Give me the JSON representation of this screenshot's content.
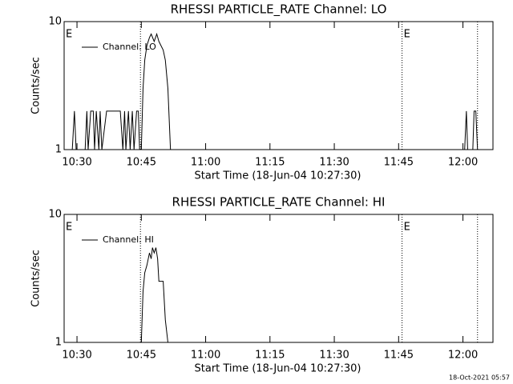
{
  "chart_data": [
    {
      "type": "line",
      "title": "RHESSI PARTICLE_RATE Channel: LO",
      "xlabel": "Start Time (18-Jun-04 10:27:30)",
      "ylabel": "Counts/sec",
      "x": [
        628.9,
        629.4,
        629.8,
        631.9,
        632.3,
        632.6,
        633.2,
        633.8,
        634.1,
        634.5,
        635.1,
        635.4,
        635.8,
        636.9,
        640.1,
        640.7,
        641.1,
        641.4,
        642.0,
        642.4,
        642.9,
        643.3,
        643.9,
        644.3,
        644.6,
        645.0,
        645.4,
        645.8,
        646.3,
        646.9,
        647.3,
        648.0,
        648.6,
        649.1,
        650.1,
        650.6,
        651.2,
        651.8,
        720.4,
        720.8,
        721.1,
        722.3,
        722.6,
        723.0,
        723.4
      ],
      "series": [
        {
          "name": "Channel: LO",
          "color": "#000000",
          "values": [
            1,
            2,
            1,
            1,
            2,
            1,
            2,
            2,
            1,
            2,
            1,
            2,
            1,
            2,
            2,
            1,
            2,
            1,
            2,
            1,
            2,
            1,
            2,
            2,
            1,
            1,
            3,
            5,
            6.5,
            7.5,
            8,
            7,
            8,
            7,
            6,
            5,
            3,
            1,
            1,
            2,
            1,
            1,
            2,
            2,
            1
          ]
        }
      ],
      "xlim": [
        627,
        727
      ],
      "xticks": [
        {
          "value": 630,
          "label": "10:30"
        },
        {
          "value": 645,
          "label": "10:45"
        },
        {
          "value": 660,
          "label": "11:00"
        },
        {
          "value": 675,
          "label": "11:15"
        },
        {
          "value": 690,
          "label": "11:30"
        },
        {
          "value": 705,
          "label": "11:45"
        },
        {
          "value": 720,
          "label": "12:00"
        }
      ],
      "ylim": [
        1,
        10
      ],
      "yticks": [
        1,
        10
      ],
      "log_y": true,
      "legend": "upper left",
      "vlines": [
        644.8,
        705.8,
        723.4
      ],
      "annotations": [
        {
          "x": 627,
          "label": "E"
        },
        {
          "x": 705.8,
          "label": "E"
        }
      ]
    },
    {
      "type": "line",
      "title": "RHESSI PARTICLE_RATE Channel: HI",
      "xlabel": "Start Time (18-Jun-04 10:27:30)",
      "ylabel": "Counts/sec",
      "x": [
        645.0,
        645.4,
        645.8,
        646.3,
        646.9,
        647.3,
        647.6,
        648.0,
        648.4,
        648.8,
        649.1,
        650.1,
        650.6,
        651.2
      ],
      "series": [
        {
          "name": "Channel: HI",
          "color": "#000000",
          "values": [
            1,
            2.5,
            3.5,
            4,
            5,
            4.5,
            5.5,
            5,
            5.5,
            4.5,
            3,
            3,
            1.5,
            1
          ]
        }
      ],
      "xlim": [
        627,
        727
      ],
      "xticks": [
        {
          "value": 630,
          "label": "10:30"
        },
        {
          "value": 645,
          "label": "10:45"
        },
        {
          "value": 660,
          "label": "11:00"
        },
        {
          "value": 675,
          "label": "11:15"
        },
        {
          "value": 690,
          "label": "11:30"
        },
        {
          "value": 705,
          "label": "11:45"
        },
        {
          "value": 720,
          "label": "12:00"
        }
      ],
      "ylim": [
        1,
        10
      ],
      "yticks": [
        1,
        10
      ],
      "log_y": true,
      "legend": "upper left",
      "vlines": [
        644.8,
        705.8,
        723.4
      ],
      "annotations": [
        {
          "x": 627,
          "label": "E"
        },
        {
          "x": 705.8,
          "label": "E"
        }
      ]
    }
  ],
  "footer": "18-Oct-2021 05:57"
}
